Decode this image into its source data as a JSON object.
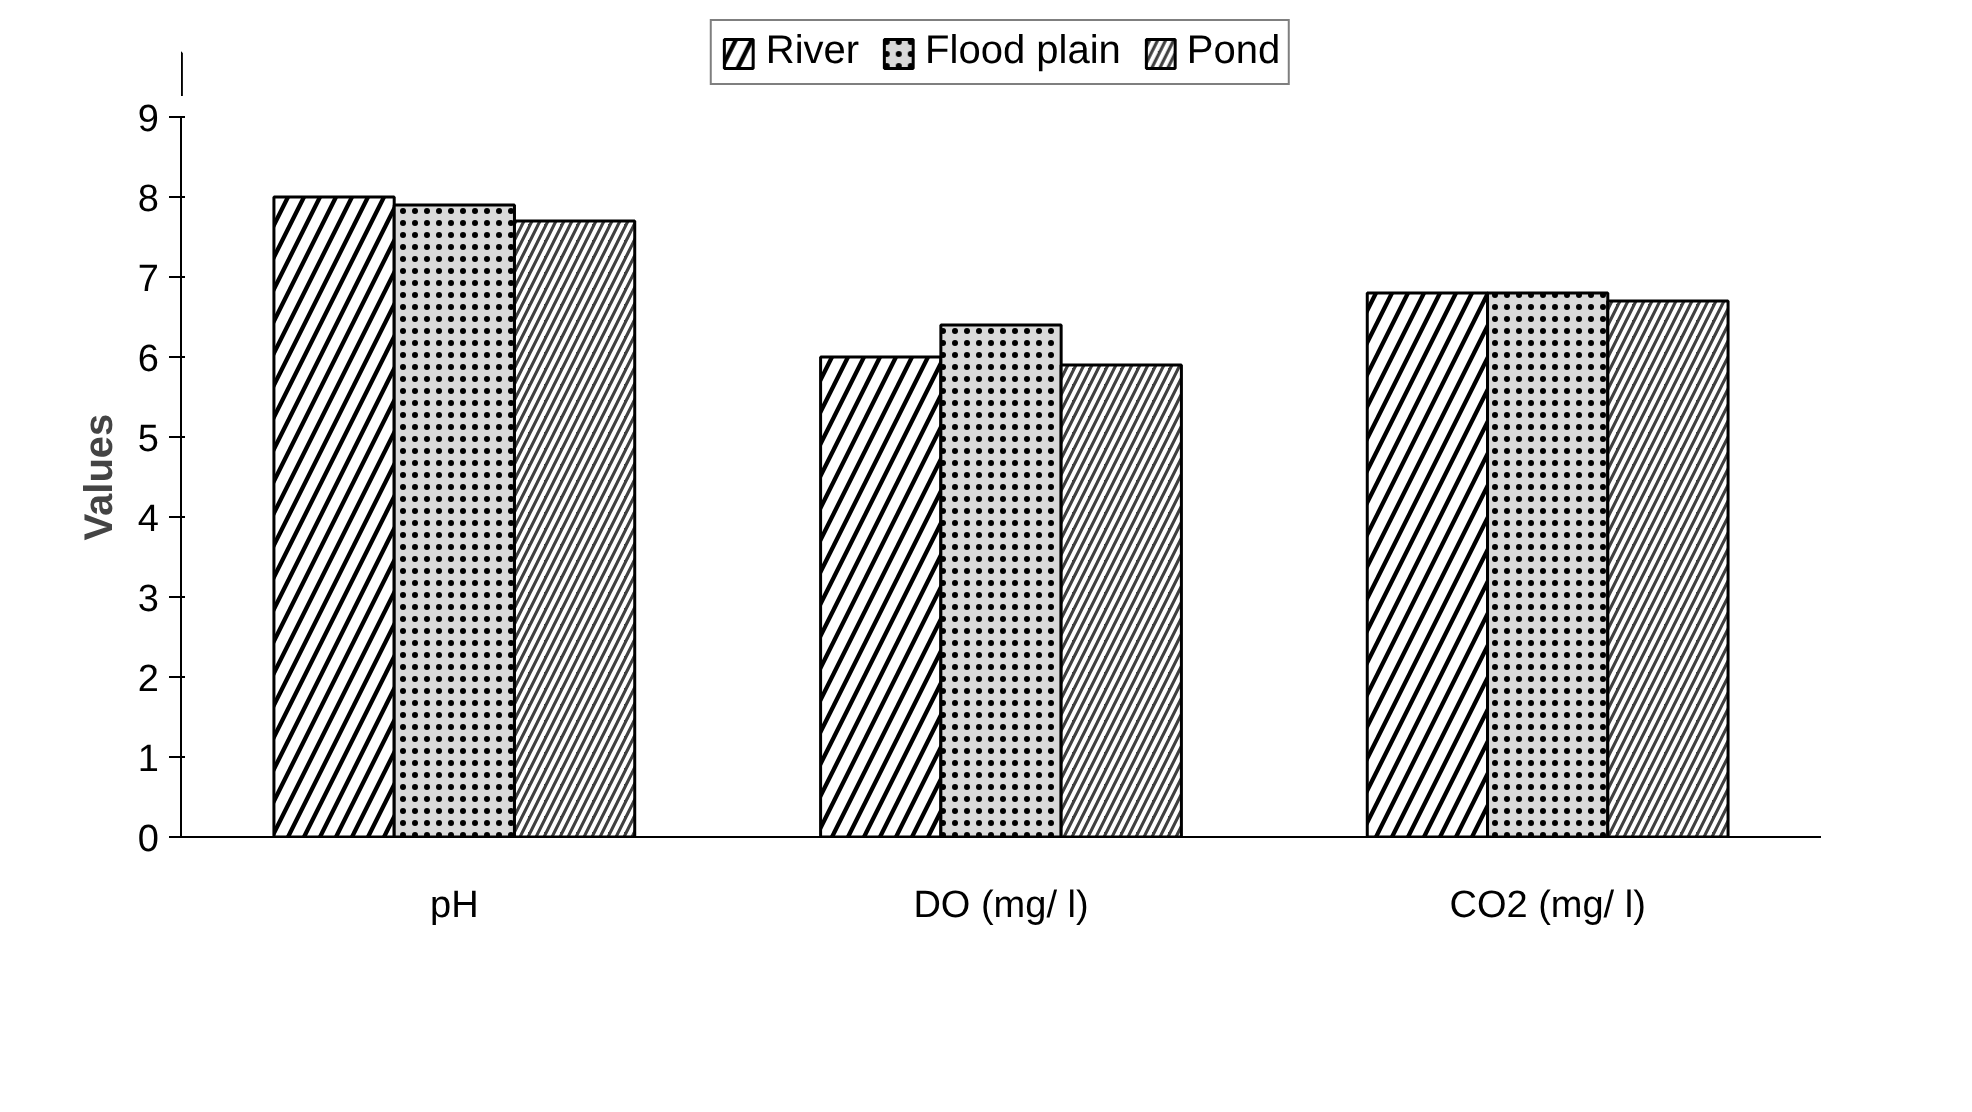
{
  "chart_data": {
    "type": "bar",
    "ylabel": "Values",
    "categories": [
      "pH",
      "DO (mg/ l)",
      "CO2 (mg/ l)"
    ],
    "series": [
      {
        "name": "River",
        "color": "#000000",
        "values": [
          8.0,
          6.0,
          6.8
        ]
      },
      {
        "name": "Flood plain",
        "color": "#d9d9d9",
        "values": [
          7.9,
          6.4,
          6.8
        ]
      },
      {
        "name": "Pond",
        "color": "#404040",
        "values": [
          7.7,
          5.9,
          6.7
        ]
      }
    ],
    "ylim": [
      0,
      9
    ],
    "yticks": [
      0,
      1,
      2,
      3,
      4,
      5,
      6,
      7,
      8,
      9
    ],
    "grid": false,
    "legend": "top"
  }
}
